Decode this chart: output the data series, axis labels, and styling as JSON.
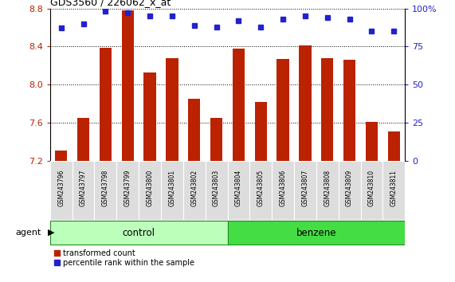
{
  "title": "GDS3560 / 226062_x_at",
  "categories": [
    "GSM243796",
    "GSM243797",
    "GSM243798",
    "GSM243799",
    "GSM243800",
    "GSM243801",
    "GSM243802",
    "GSM243803",
    "GSM243804",
    "GSM243805",
    "GSM243806",
    "GSM243807",
    "GSM243808",
    "GSM243809",
    "GSM243810",
    "GSM243811"
  ],
  "bar_values": [
    7.31,
    7.65,
    8.39,
    8.78,
    8.13,
    8.28,
    7.85,
    7.65,
    8.38,
    7.82,
    8.27,
    8.41,
    8.28,
    8.26,
    7.61,
    7.51
  ],
  "percentile_values": [
    87,
    90,
    98,
    97,
    95,
    95,
    89,
    88,
    92,
    88,
    93,
    95,
    94,
    93,
    85,
    85
  ],
  "bar_color": "#BB2200",
  "percentile_color": "#2222CC",
  "ylim_left": [
    7.2,
    8.8
  ],
  "ylim_right": [
    0,
    100
  ],
  "yticks_left": [
    7.2,
    7.6,
    8.0,
    8.4,
    8.8
  ],
  "yticks_right": [
    0,
    25,
    50,
    75,
    100
  ],
  "ytick_labels_right": [
    "0",
    "25",
    "50",
    "75",
    "100%"
  ],
  "groups": [
    {
      "label": "control",
      "start": 0,
      "end": 7,
      "color": "#BBFFBB"
    },
    {
      "label": "benzene",
      "start": 8,
      "end": 15,
      "color": "#44DD44"
    }
  ],
  "agent_label": "agent",
  "legend": [
    {
      "label": "transformed count",
      "color": "#BB2200"
    },
    {
      "label": "percentile rank within the sample",
      "color": "#2222CC"
    }
  ],
  "bar_width": 0.55,
  "figsize": [
    5.71,
    3.54
  ],
  "dpi": 100
}
